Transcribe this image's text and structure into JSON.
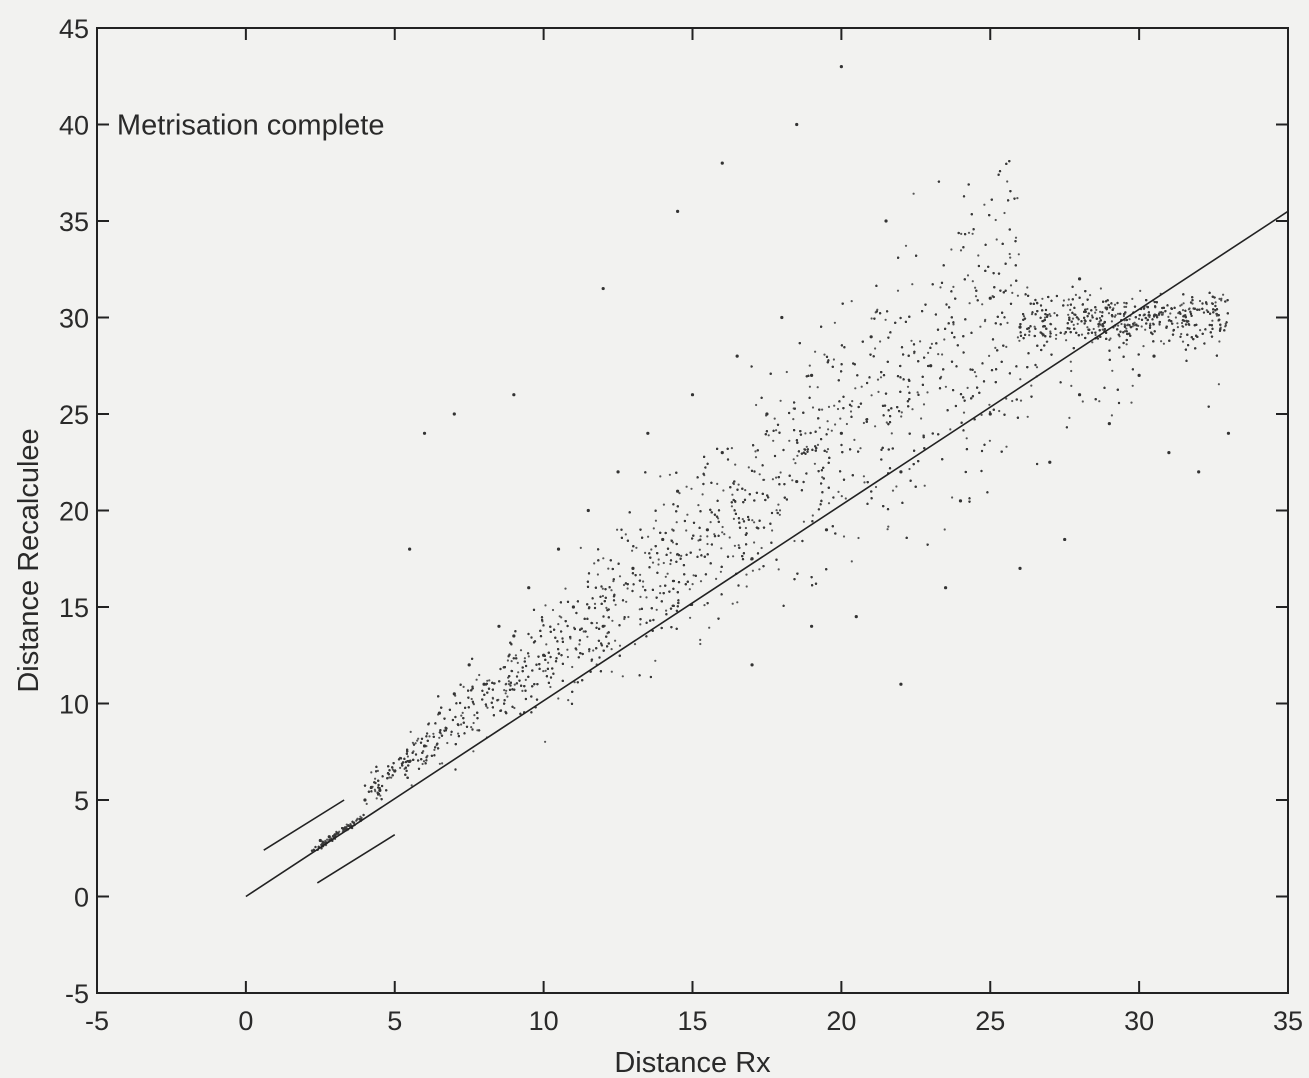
{
  "chart_data": {
    "type": "scatter",
    "title": "",
    "xlabel": "Distance Rx",
    "ylabel": "Distance Recalculee",
    "xlim": [
      -5,
      35
    ],
    "ylim": [
      -5,
      45
    ],
    "xticks": [
      -5,
      0,
      5,
      10,
      15,
      20,
      25,
      30,
      35
    ],
    "yticks": [
      -5,
      0,
      5,
      10,
      15,
      20,
      25,
      30,
      35,
      40,
      45
    ],
    "xtick_labels": [
      "-5",
      "0",
      "5",
      "10",
      "15",
      "20",
      "25",
      "30",
      "35"
    ],
    "ytick_labels": [
      "-5",
      "0",
      "5",
      "10",
      "15",
      "20",
      "25",
      "30",
      "35",
      "40",
      "45"
    ],
    "grid": false,
    "legend": "none",
    "annotation": {
      "text": "Metrisation complete",
      "x": -4.6,
      "y": 40
    },
    "reference_line": {
      "x": [
        0,
        35
      ],
      "y": [
        0,
        35.5
      ]
    },
    "bracket_lines": [
      {
        "x": [
          0.6,
          3.3
        ],
        "y": [
          2.4,
          5.0
        ]
      },
      {
        "x": [
          2.4,
          5.0
        ],
        "y": [
          0.7,
          3.2
        ]
      }
    ],
    "scatter_summary": {
      "x_range": [
        2,
        33
      ],
      "y_range": [
        1.5,
        43
      ],
      "approx_points": 6000,
      "trend": "points spread around and above the reference line, widening with distance"
    },
    "points": [
      [
        2.5,
        2.9
      ],
      [
        2.8,
        3.1
      ],
      [
        3.0,
        3.2
      ],
      [
        3.3,
        3.5
      ],
      [
        4.0,
        5.0
      ],
      [
        4.5,
        5.5
      ],
      [
        5.0,
        6.5
      ],
      [
        5.5,
        7.0
      ],
      [
        6.0,
        7.8
      ],
      [
        6.5,
        9.5
      ],
      [
        7.0,
        10.5
      ],
      [
        7.5,
        12.0
      ],
      [
        8.0,
        11.0
      ],
      [
        8.5,
        14.0
      ],
      [
        9.0,
        13.5
      ],
      [
        9.5,
        16.0
      ],
      [
        10.0,
        12.5
      ],
      [
        10.5,
        18.0
      ],
      [
        11.0,
        15.0
      ],
      [
        11.5,
        20.0
      ],
      [
        12.0,
        14.0
      ],
      [
        12.5,
        22.0
      ],
      [
        13.0,
        17.0
      ],
      [
        13.5,
        24.0
      ],
      [
        14.0,
        18.5
      ],
      [
        14.5,
        21.0
      ],
      [
        15.0,
        26.0
      ],
      [
        15.5,
        19.0
      ],
      [
        16.0,
        23.0
      ],
      [
        16.5,
        28.0
      ],
      [
        17.0,
        17.5
      ],
      [
        17.5,
        25.0
      ],
      [
        18.0,
        30.0
      ],
      [
        18.5,
        21.5
      ],
      [
        19.0,
        27.0
      ],
      [
        19.5,
        19.0
      ],
      [
        20.0,
        24.0
      ],
      [
        21.0,
        29.0
      ],
      [
        22.0,
        22.0
      ],
      [
        23.0,
        27.5
      ],
      [
        24.0,
        20.5
      ],
      [
        25.0,
        25.0
      ],
      [
        26.0,
        29.5
      ],
      [
        27.0,
        22.5
      ],
      [
        28.0,
        26.0
      ],
      [
        29.0,
        24.5
      ],
      [
        30.0,
        27.0
      ],
      [
        31.0,
        23.0
      ],
      [
        32.0,
        22.0
      ],
      [
        33.0,
        24.0
      ],
      [
        18.5,
        40.0
      ],
      [
        20.0,
        43.0
      ],
      [
        16.0,
        38.0
      ],
      [
        25.0,
        31.0
      ],
      [
        12.0,
        31.5
      ],
      [
        9.0,
        26.0
      ],
      [
        7.0,
        25.0
      ],
      [
        6.0,
        24.0
      ],
      [
        5.5,
        18.0
      ],
      [
        14.5,
        35.5
      ],
      [
        21.5,
        35.0
      ],
      [
        28.0,
        32.0
      ],
      [
        30.5,
        28.0
      ],
      [
        17.0,
        12.0
      ],
      [
        20.5,
        14.5
      ],
      [
        22.0,
        11.0
      ],
      [
        23.5,
        16.0
      ],
      [
        26.0,
        17.0
      ],
      [
        27.5,
        18.5
      ],
      [
        19.0,
        14.0
      ]
    ]
  }
}
